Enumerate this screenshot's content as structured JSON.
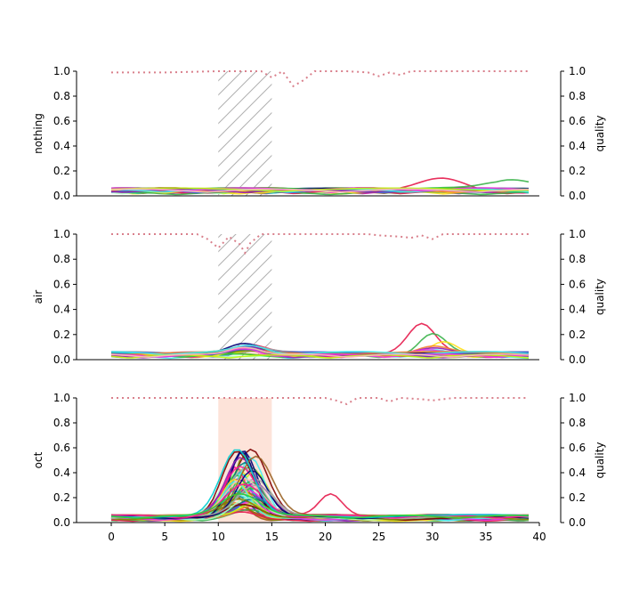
{
  "chart_data": [
    {
      "type": "line",
      "ylabel": "nothing",
      "y2label": "quality",
      "ylim": [
        0,
        1
      ],
      "y2lim": [
        0,
        1
      ],
      "xlim": [
        -1,
        40
      ],
      "yticks": [
        "0.0",
        "0.2",
        "0.4",
        "0.6",
        "0.8",
        "1.0"
      ],
      "y2ticks": [
        "0.0",
        "0.2",
        "0.4",
        "0.6",
        "0.8",
        "1.0"
      ],
      "shaded_region": {
        "x_start": 10,
        "x_end": 15,
        "style": "hatched",
        "color": "#b0b0b0",
        "y_start": 0,
        "y_end": 1
      },
      "quality_series": [
        {
          "x": 0,
          "y": 0.99
        },
        {
          "x": 5,
          "y": 0.99
        },
        {
          "x": 10,
          "y": 1.0
        },
        {
          "x": 14,
          "y": 1.0
        },
        {
          "x": 15,
          "y": 0.95
        },
        {
          "x": 16,
          "y": 1.0
        },
        {
          "x": 17,
          "y": 0.88
        },
        {
          "x": 18,
          "y": 0.93
        },
        {
          "x": 19,
          "y": 1.0
        },
        {
          "x": 22,
          "y": 1.0
        },
        {
          "x": 24,
          "y": 0.99
        },
        {
          "x": 25,
          "y": 0.96
        },
        {
          "x": 26,
          "y": 0.99
        },
        {
          "x": 27,
          "y": 0.97
        },
        {
          "x": 28,
          "y": 1.0
        },
        {
          "x": 39,
          "y": 1.0
        }
      ],
      "series_profile": "low",
      "peak": 0.09
    },
    {
      "type": "line",
      "ylabel": "air",
      "y2label": "quality",
      "ylim": [
        0,
        1
      ],
      "y2lim": [
        0,
        1
      ],
      "xlim": [
        -1,
        40
      ],
      "yticks": [
        "0.0",
        "0.2",
        "0.4",
        "0.6",
        "0.8",
        "1.0"
      ],
      "y2ticks": [
        "0.0",
        "0.2",
        "0.4",
        "0.6",
        "0.8",
        "1.0"
      ],
      "shaded_region": {
        "x_start": 10,
        "x_end": 15,
        "style": "hatched",
        "color": "#b0b0b0",
        "y_start": 0,
        "y_end": 1
      },
      "quality_series": [
        {
          "x": 0,
          "y": 1.0
        },
        {
          "x": 8,
          "y": 1.0
        },
        {
          "x": 9,
          "y": 0.96
        },
        {
          "x": 10,
          "y": 0.89
        },
        {
          "x": 11,
          "y": 0.98
        },
        {
          "x": 12,
          "y": 0.92
        },
        {
          "x": 12.5,
          "y": 0.85
        },
        {
          "x": 13,
          "y": 0.93
        },
        {
          "x": 14,
          "y": 1.0
        },
        {
          "x": 24,
          "y": 1.0
        },
        {
          "x": 25,
          "y": 0.99
        },
        {
          "x": 27,
          "y": 0.98
        },
        {
          "x": 28,
          "y": 0.97
        },
        {
          "x": 29,
          "y": 0.99
        },
        {
          "x": 30,
          "y": 0.96
        },
        {
          "x": 31,
          "y": 1.0
        },
        {
          "x": 39,
          "y": 1.0
        }
      ],
      "series_profile": "air",
      "peak": 0.23
    },
    {
      "type": "line",
      "ylabel": "oct",
      "y2label": "quality",
      "ylim": [
        0,
        1
      ],
      "y2lim": [
        0,
        1
      ],
      "xlim": [
        -1,
        40
      ],
      "xticks": [
        "0",
        "5",
        "10",
        "15",
        "20",
        "25",
        "30",
        "35",
        "40"
      ],
      "yticks": [
        "0.0",
        "0.2",
        "0.4",
        "0.6",
        "0.8",
        "1.0"
      ],
      "y2ticks": [
        "0.0",
        "0.2",
        "0.4",
        "0.6",
        "0.8",
        "1.0"
      ],
      "shaded_region": {
        "x_start": 10,
        "x_end": 15,
        "style": "filled",
        "color": "#fde3d9",
        "y_start": 0,
        "y_end": 1
      },
      "quality_series": [
        {
          "x": 0,
          "y": 1.0
        },
        {
          "x": 20,
          "y": 1.0
        },
        {
          "x": 21,
          "y": 0.98
        },
        {
          "x": 22,
          "y": 0.95
        },
        {
          "x": 23,
          "y": 1.0
        },
        {
          "x": 25,
          "y": 1.0
        },
        {
          "x": 26,
          "y": 0.97
        },
        {
          "x": 27,
          "y": 1.0
        },
        {
          "x": 29,
          "y": 0.99
        },
        {
          "x": 30,
          "y": 0.98
        },
        {
          "x": 31,
          "y": 0.99
        },
        {
          "x": 32,
          "y": 1.0
        },
        {
          "x": 39,
          "y": 1.0
        }
      ],
      "series_profile": "oct",
      "peak": 0.55
    }
  ],
  "palette": [
    "#e6194b",
    "#3cb44b",
    "#ffe119",
    "#4363d8",
    "#f58231",
    "#911eb4",
    "#46f0f0",
    "#f032e6",
    "#bcf60c",
    "#fabebe",
    "#008080",
    "#9a6324",
    "#800000",
    "#aaffc3",
    "#808000",
    "#000075",
    "#a9a9a9",
    "#ff1493",
    "#00ced1",
    "#32cd32"
  ],
  "quality_color": "#d9808c"
}
